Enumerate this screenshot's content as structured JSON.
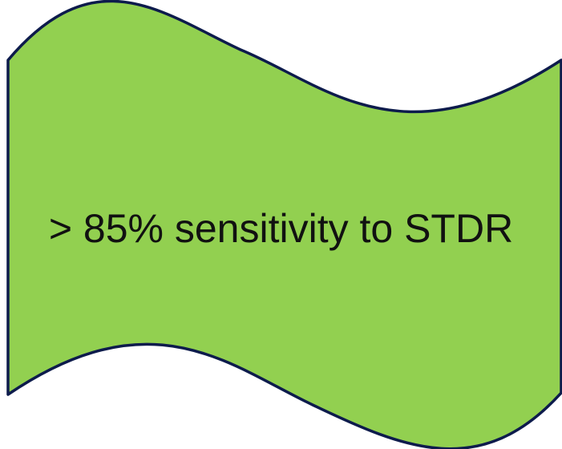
{
  "shape": {
    "label": "> 85% sensitivity to STDR",
    "fill_color": "#92D050",
    "stroke_color": "#0D1B4C"
  }
}
